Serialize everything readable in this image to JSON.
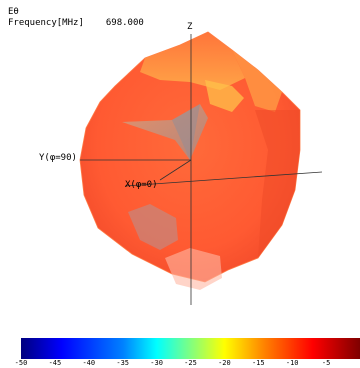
{
  "header": {
    "quantity": "Eθ",
    "frequency_label": "Frequency[MHz]",
    "frequency_value": "698.000"
  },
  "axes": {
    "z": "Z",
    "y": "Y(φ=90)",
    "x": "X(φ=0)"
  },
  "colorbar": {
    "ticks": [
      "-50",
      "-45",
      "-40",
      "-35",
      "-30",
      "-25",
      "-20",
      "-15",
      "-10",
      "-5"
    ],
    "range": [
      -50,
      0
    ]
  }
}
